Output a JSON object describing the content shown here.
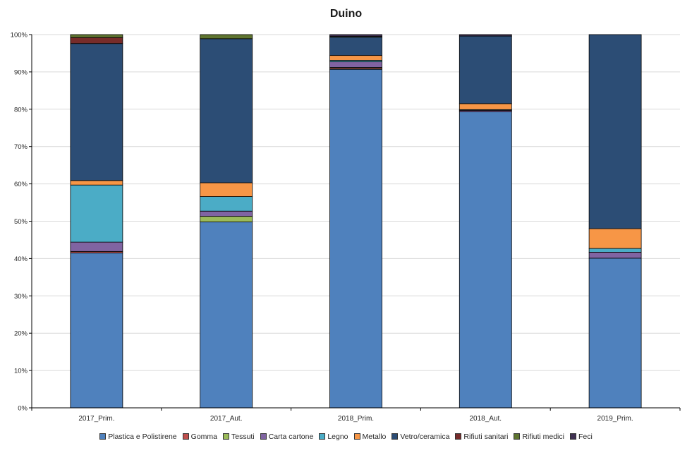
{
  "chart_data": {
    "type": "bar",
    "stacked": true,
    "percent": true,
    "title": "Duino",
    "categories": [
      "2017_Prim.",
      "2017_Aut.",
      "2018_Prim.",
      "2018_Aut.",
      "2019_Prim."
    ],
    "ylim": [
      0,
      100
    ],
    "yticks": [
      "0%",
      "10%",
      "20%",
      "30%",
      "40%",
      "50%",
      "60%",
      "70%",
      "80%",
      "90%",
      "100%"
    ],
    "grid": true,
    "legend_position": "bottom",
    "series": [
      {
        "name": "Plastica e Polistirene",
        "color": "#4f81bd",
        "values": [
          41.5,
          49.8,
          90.7,
          79.3,
          40.1
        ]
      },
      {
        "name": "Gomma",
        "color": "#c0504d",
        "values": [
          0.4,
          0.0,
          0.3,
          0.0,
          0.0
        ]
      },
      {
        "name": "Tessuti",
        "color": "#9bbb59",
        "values": [
          0.0,
          1.5,
          0.2,
          0.0,
          0.0
        ]
      },
      {
        "name": "Carta cartone",
        "color": "#8064a2",
        "values": [
          2.5,
          1.4,
          1.5,
          0.4,
          1.6
        ]
      },
      {
        "name": "Legno",
        "color": "#4bacc6",
        "values": [
          15.3,
          3.9,
          0.4,
          0.2,
          1.0
        ]
      },
      {
        "name": "Metallo",
        "color": "#f79646",
        "values": [
          1.2,
          3.7,
          1.3,
          1.6,
          5.3
        ]
      },
      {
        "name": "Vetro/ceramica",
        "color": "#2c4d75",
        "values": [
          36.7,
          38.6,
          4.9,
          18.1,
          52.0
        ]
      },
      {
        "name": "Rifiuti sanitari",
        "color": "#772c2a",
        "values": [
          1.6,
          0.0,
          0.0,
          0.0,
          0.0
        ]
      },
      {
        "name": "Rifiuti medici",
        "color": "#5f7530",
        "values": [
          0.8,
          1.1,
          0.2,
          0.0,
          0.0
        ]
      },
      {
        "name": "Feci",
        "color": "#403152",
        "values": [
          0.0,
          0.0,
          0.5,
          0.4,
          0.0
        ]
      }
    ]
  }
}
